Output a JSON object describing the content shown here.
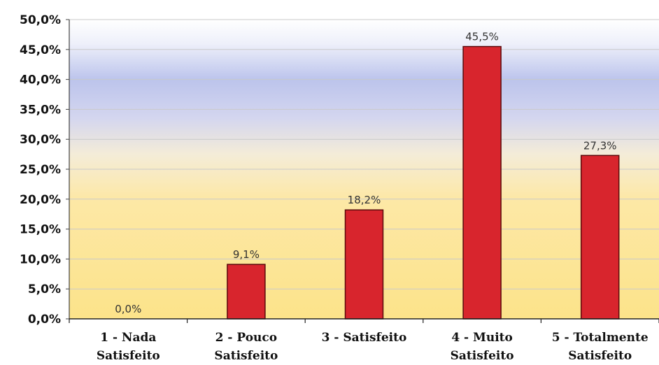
{
  "chart_data": {
    "type": "bar",
    "title": "",
    "xlabel": "",
    "ylabel": "",
    "ylim": [
      0,
      50
    ],
    "yticks": [
      "0,0%",
      "5,0%",
      "10,0%",
      "15,0%",
      "20,0%",
      "25,0%",
      "30,0%",
      "35,0%",
      "40,0%",
      "45,0%",
      "50,0%"
    ],
    "categories": [
      [
        "1 - Nada",
        "Satisfeito"
      ],
      [
        "2 - Pouco",
        "Satisfeito"
      ],
      [
        "3 - Satisfeito"
      ],
      [
        "4 - Muito",
        "Satisfeito"
      ],
      [
        "5 - Totalmente",
        "Satisfeito"
      ]
    ],
    "values": [
      0.0,
      9.1,
      18.2,
      45.5,
      27.3
    ],
    "data_labels": [
      "0,0%",
      "9,1%",
      "18,2%",
      "45,5%",
      "27,3%"
    ],
    "grid": true,
    "legend": "none",
    "colors": {
      "bar_fill": "#d8252d",
      "bar_stroke": "#5a0a0c",
      "plot_top": "#ffffff",
      "plot_blue": "#bcc4ec",
      "plot_yellow": "#fde48a"
    }
  }
}
